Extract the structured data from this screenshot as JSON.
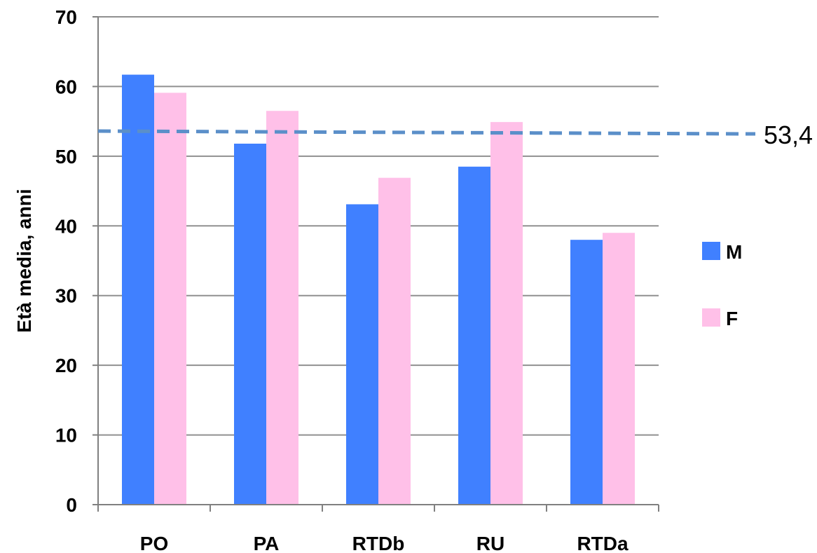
{
  "chart_data": {
    "type": "bar",
    "title": "",
    "xlabel": "",
    "ylabel": "Età media, anni",
    "categories": [
      "PO",
      "PA",
      "RTDb",
      "RU",
      "RTDa"
    ],
    "series": [
      {
        "name": "M",
        "values": [
          61.7,
          51.8,
          43.1,
          48.5,
          38.0
        ],
        "color": "#4080ff"
      },
      {
        "name": "F",
        "values": [
          59.1,
          56.5,
          46.9,
          54.9,
          39.0
        ],
        "color": "#ffc0e8"
      }
    ],
    "ylim": [
      0,
      70
    ],
    "yticks": [
      0,
      10,
      20,
      30,
      40,
      50,
      60,
      70
    ],
    "grid": true,
    "legend_position": "right",
    "reference_line": {
      "value": 53.4,
      "label": "53,4",
      "color": "#5b8fc9",
      "style": "dashed"
    }
  }
}
